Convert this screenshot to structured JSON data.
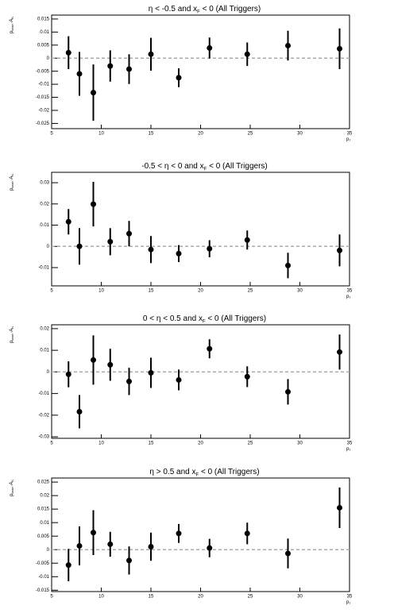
{
  "chart_data": [
    {
      "type": "scatter",
      "title": [
        {
          "text": "η < -0.5 and x"
        },
        {
          "text": "F",
          "sub": true
        },
        {
          "text": " < 0 (All Triggers)"
        }
      ],
      "ylabel": [
        {
          "text": "p"
        },
        {
          "text": "beam",
          "sub": true
        },
        {
          "text": "·A"
        },
        {
          "text": "N",
          "sub": true
        }
      ],
      "xlabel": [
        {
          "text": "p"
        },
        {
          "text": "T",
          "sub": true
        }
      ],
      "x": [
        6.7,
        7.8,
        9.2,
        10.9,
        12.8,
        15.0,
        17.8,
        20.9,
        24.7,
        28.8,
        34.0
      ],
      "values": [
        0.0021,
        -0.006,
        -0.0132,
        -0.003,
        -0.0042,
        0.0015,
        -0.0075,
        0.0039,
        0.0015,
        0.0048,
        0.0036
      ],
      "errors": [
        0.0063,
        0.0084,
        0.0108,
        0.006,
        0.0057,
        0.0063,
        0.0036,
        0.004,
        0.0045,
        0.0057,
        0.0078
      ],
      "color": "#000000",
      "hline": 0,
      "xlim": [
        5,
        35
      ],
      "xticks": [
        5,
        10,
        15,
        20,
        25,
        30,
        35
      ],
      "ylim": [
        -0.027,
        0.0165
      ],
      "yticks": [
        -0.025,
        -0.02,
        -0.015,
        -0.01,
        -0.005,
        0,
        0.005,
        0.01,
        0.015
      ]
    },
    {
      "type": "scatter",
      "title": [
        {
          "text": "-0.5 < η < 0 and x"
        },
        {
          "text": "F",
          "sub": true
        },
        {
          "text": " < 0 (All Triggers)"
        }
      ],
      "ylabel": [
        {
          "text": "p"
        },
        {
          "text": "beam",
          "sub": true
        },
        {
          "text": "·A"
        },
        {
          "text": "N",
          "sub": true
        }
      ],
      "xlabel": [
        {
          "text": "p"
        },
        {
          "text": "T",
          "sub": true
        }
      ],
      "x": [
        6.7,
        7.8,
        9.2,
        10.9,
        12.8,
        15.0,
        17.8,
        20.9,
        24.7,
        28.8,
        34.0
      ],
      "values": [
        0.0116,
        0,
        0.0199,
        0.0022,
        0.006,
        -0.0015,
        -0.0034,
        -0.0011,
        0.003,
        -0.009,
        -0.0019
      ],
      "errors": [
        0.006,
        0.0086,
        0.0105,
        0.0064,
        0.006,
        0.0064,
        0.004,
        0.004,
        0.0045,
        0.006,
        0.0075
      ],
      "color": "#000000",
      "hline": 0,
      "xlim": [
        5,
        35
      ],
      "xticks": [
        5,
        10,
        15,
        20,
        25,
        30,
        35
      ],
      "ylim": [
        -0.0186,
        0.0349
      ],
      "yticks": [
        -0.01,
        0,
        0.01,
        0.02,
        0.03
      ]
    },
    {
      "type": "scatter",
      "title": [
        {
          "text": "0 < η < 0.5 and x"
        },
        {
          "text": "F",
          "sub": true
        },
        {
          "text": " < 0 (All Triggers)"
        }
      ],
      "ylabel": [
        {
          "text": "p"
        },
        {
          "text": "beam",
          "sub": true
        },
        {
          "text": "·A"
        },
        {
          "text": "N",
          "sub": true
        }
      ],
      "xlabel": [
        {
          "text": "p"
        },
        {
          "text": "T",
          "sub": true
        }
      ],
      "x": [
        6.7,
        7.8,
        9.2,
        10.9,
        12.8,
        15.0,
        17.8,
        20.9,
        24.7,
        28.8,
        34.0
      ],
      "values": [
        -0.0011,
        -0.0184,
        0.0055,
        0.0033,
        -0.0044,
        -0.0004,
        -0.0037,
        0.0107,
        -0.0022,
        -0.0092,
        0.0092
      ],
      "errors": [
        0.006,
        0.0077,
        0.0114,
        0.0074,
        0.0063,
        0.007,
        0.0048,
        0.0044,
        0.0048,
        0.0059,
        0.0081
      ],
      "color": "#000000",
      "hline": 0,
      "xlim": [
        5,
        35
      ],
      "xticks": [
        5,
        10,
        15,
        20,
        25,
        30,
        35
      ],
      "ylim": [
        -0.0307,
        0.0218
      ],
      "yticks": [
        -0.03,
        -0.02,
        -0.01,
        0,
        0.01,
        0.02
      ]
    },
    {
      "type": "scatter",
      "title": [
        {
          "text": "η > 0.5 and x"
        },
        {
          "text": "F",
          "sub": true
        },
        {
          "text": " < 0 (All Triggers)"
        }
      ],
      "ylabel": [
        {
          "text": "p"
        },
        {
          "text": "beam",
          "sub": true
        },
        {
          "text": "·A"
        },
        {
          "text": "N",
          "sub": true
        }
      ],
      "xlabel": [
        {
          "text": "p"
        },
        {
          "text": "T",
          "sub": true
        }
      ],
      "x": [
        6.7,
        7.8,
        9.2,
        10.9,
        12.8,
        15.0,
        17.8,
        20.9,
        24.7,
        28.8,
        34.0
      ],
      "values": [
        -0.0057,
        0.0014,
        0.0063,
        0.002,
        -0.004,
        0.0011,
        0.006,
        0.0006,
        0.006,
        -0.0014,
        0.0155
      ],
      "errors": [
        0.006,
        0.0072,
        0.0083,
        0.0046,
        0.0052,
        0.0052,
        0.0035,
        0.0034,
        0.004,
        0.0055,
        0.0075
      ],
      "color": "#000000",
      "hline": 0,
      "xlim": [
        5,
        35
      ],
      "xticks": [
        5,
        10,
        15,
        20,
        25,
        30,
        35
      ],
      "ylim": [
        -0.0155,
        0.0265
      ],
      "yticks": [
        -0.015,
        -0.01,
        -0.005,
        0,
        0.005,
        0.01,
        0.015,
        0.02,
        0.025
      ]
    }
  ]
}
